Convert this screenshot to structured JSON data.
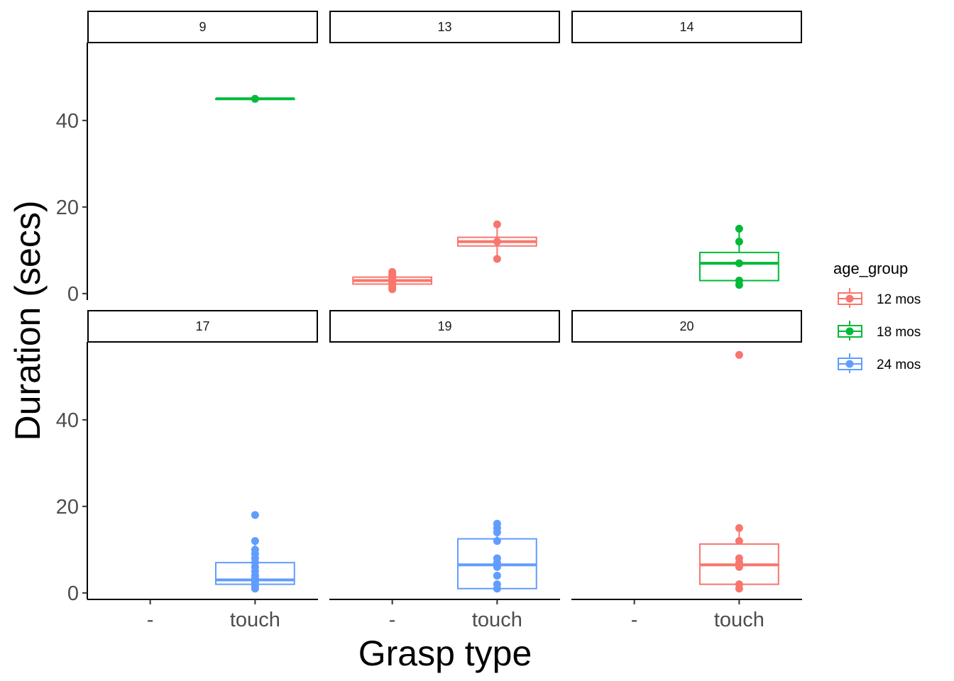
{
  "chart_data": {
    "type": "boxplot",
    "xlabel": "Grasp type",
    "ylabel": "Duration (secs)",
    "categories": [
      "-",
      "touch"
    ],
    "yticks": [
      0,
      20,
      40
    ],
    "ylim": [
      -1.5,
      58
    ],
    "grid": false,
    "legend": {
      "title": "age_group",
      "position": "right",
      "entries": [
        {
          "label": "12 mos",
          "color": "#F8766D"
        },
        {
          "label": "18 mos",
          "color": "#00BA38"
        },
        {
          "label": "24 mos",
          "color": "#619CFF"
        }
      ]
    },
    "panels": [
      {
        "strip": "9",
        "boxes": [
          {
            "category": "touch",
            "group": "18 mos",
            "min": 45,
            "q1": 45,
            "median": 45,
            "q3": 45,
            "max": 45,
            "points": [
              45
            ]
          }
        ]
      },
      {
        "strip": "13",
        "boxes": [
          {
            "category": "-",
            "group": "12 mos",
            "min": 1,
            "q1": 2.2,
            "median": 3,
            "q3": 3.8,
            "max": 5,
            "points": [
              1,
              1.5,
              2,
              2.5,
              3,
              3.5,
              4,
              4.5,
              5
            ]
          },
          {
            "category": "touch",
            "group": "12 mos",
            "min": 8,
            "q1": 11,
            "median": 12,
            "q3": 13,
            "max": 16,
            "points": [
              8,
              12,
              16
            ]
          }
        ]
      },
      {
        "strip": "14",
        "boxes": [
          {
            "category": "touch",
            "group": "18 mos",
            "min": 2,
            "q1": 3,
            "median": 7,
            "q3": 9.5,
            "max": 15,
            "points": [
              2,
              3,
              7,
              12,
              15
            ]
          }
        ]
      },
      {
        "strip": "17",
        "boxes": [
          {
            "category": "touch",
            "group": "24 mos",
            "min": 1,
            "q1": 2,
            "median": 3,
            "q3": 7,
            "max": 12,
            "points": [
              1,
              1.5,
              2,
              2.5,
              3,
              3.5,
              4,
              5,
              6,
              7,
              8,
              9,
              10,
              12,
              18
            ]
          }
        ]
      },
      {
        "strip": "19",
        "boxes": [
          {
            "category": "touch",
            "group": "24 mos",
            "min": 1,
            "q1": 1,
            "median": 6.5,
            "q3": 12.5,
            "max": 16,
            "points": [
              1,
              2,
              4,
              6,
              7,
              8,
              12,
              14,
              15,
              16
            ]
          }
        ]
      },
      {
        "strip": "20",
        "boxes": [
          {
            "category": "touch",
            "group": "12 mos",
            "min": 1,
            "q1": 2,
            "median": 6.5,
            "q3": 11.3,
            "max": 15,
            "points": [
              1,
              2,
              6,
              7,
              8,
              12,
              15,
              55
            ]
          }
        ]
      }
    ]
  }
}
